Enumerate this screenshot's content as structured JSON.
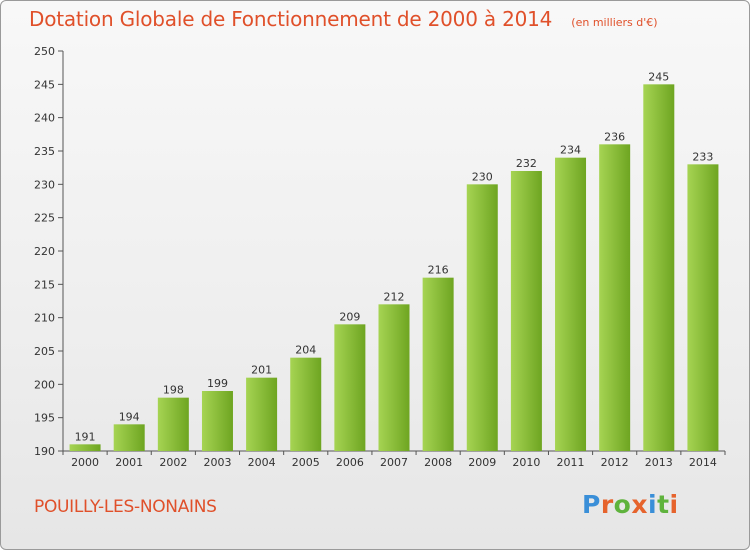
{
  "header": {
    "title": "Dotation Globale de Fonctionnement de 2000 à 2014",
    "unit": "(en milliers d'€)"
  },
  "footer": {
    "commune": "POUILLY-LES-NONAINS",
    "logo_text": "Proxiti"
  },
  "colors": {
    "title": "#e0502a",
    "bar_light": "#a6d453",
    "bar_dark": "#6ea521",
    "logo": [
      "#3a8fd8",
      "#e6632c",
      "#5fb33d",
      "#e6632c",
      "#3a8fd8",
      "#5fb33d",
      "#e6632c"
    ]
  },
  "chart_data": {
    "type": "bar",
    "title": "Dotation Globale de Fonctionnement de 2000 à 2014",
    "subtitle": "(en milliers d'€)",
    "categories": [
      "2000",
      "2001",
      "2002",
      "2003",
      "2004",
      "2005",
      "2006",
      "2007",
      "2008",
      "2009",
      "2010",
      "2011",
      "2012",
      "2013",
      "2014"
    ],
    "values": [
      191,
      194,
      198,
      199,
      201,
      204,
      209,
      212,
      216,
      230,
      232,
      234,
      236,
      245,
      233
    ],
    "ylim": [
      190,
      250
    ],
    "yticks": [
      190,
      195,
      200,
      205,
      210,
      215,
      220,
      225,
      230,
      235,
      240,
      245,
      250
    ],
    "grid": false,
    "legend": "none"
  }
}
